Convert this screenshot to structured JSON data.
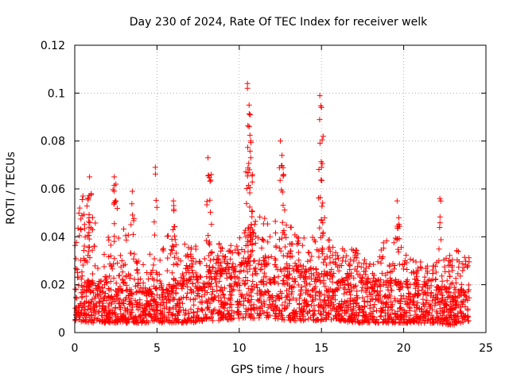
{
  "chart_data": {
    "type": "scatter",
    "title": "Day 230 of 2024, Rate Of TEC Index for receiver welk",
    "xlabel": "GPS time / hours",
    "ylabel": "ROTI / TECUs",
    "xlim": [
      0,
      25
    ],
    "ylim": [
      0,
      0.12
    ],
    "xticks": [
      "0",
      "5",
      "10",
      "15",
      "20",
      "25"
    ],
    "yticks": [
      "0",
      "0.02",
      "0.04",
      "0.06",
      "0.08",
      "0.1",
      "0.12"
    ],
    "grid": true,
    "marker": "+",
    "color": "#ff0000",
    "dense_envelope": {
      "description_hours": "approximate per-hour base band and upper spread of dense point cloud",
      "x": [
        0,
        1,
        2,
        3,
        4,
        5,
        6,
        7,
        8,
        9,
        10,
        11,
        12,
        13,
        14,
        15,
        16,
        17,
        18,
        19,
        20,
        21,
        22,
        23,
        24
      ],
      "low": [
        0.005,
        0.004,
        0.004,
        0.004,
        0.004,
        0.004,
        0.004,
        0.004,
        0.005,
        0.005,
        0.006,
        0.006,
        0.006,
        0.005,
        0.005,
        0.005,
        0.005,
        0.004,
        0.004,
        0.004,
        0.004,
        0.004,
        0.004,
        0.003,
        0.005
      ],
      "base_high": [
        0.022,
        0.02,
        0.018,
        0.017,
        0.017,
        0.018,
        0.02,
        0.022,
        0.024,
        0.026,
        0.028,
        0.03,
        0.028,
        0.026,
        0.025,
        0.024,
        0.023,
        0.022,
        0.021,
        0.021,
        0.02,
        0.02,
        0.019,
        0.018,
        0.018
      ],
      "spread_high": [
        0.052,
        0.05,
        0.04,
        0.045,
        0.03,
        0.035,
        0.045,
        0.035,
        0.045,
        0.035,
        0.04,
        0.05,
        0.048,
        0.045,
        0.04,
        0.04,
        0.038,
        0.035,
        0.03,
        0.04,
        0.035,
        0.03,
        0.03,
        0.035,
        0.035
      ]
    },
    "notable_points": {
      "x": [
        0.3,
        0.5,
        0.8,
        0.9,
        1.0,
        2.4,
        2.5,
        3.5,
        4.9,
        6.0,
        8.1,
        8.3,
        10.5,
        10.5,
        10.6,
        10.6,
        10.7,
        10.7,
        10.8,
        12.5,
        12.6,
        12.7,
        14.9,
        15.0,
        15.1,
        15.0,
        19.6,
        19.7,
        22.2
      ],
      "y": [
        0.052,
        0.057,
        0.056,
        0.065,
        0.058,
        0.065,
        0.062,
        0.059,
        0.069,
        0.055,
        0.073,
        0.066,
        0.104,
        0.102,
        0.095,
        0.086,
        0.08,
        0.073,
        0.066,
        0.08,
        0.074,
        0.066,
        0.099,
        0.094,
        0.082,
        0.069,
        0.055,
        0.048,
        0.056
      ]
    }
  }
}
